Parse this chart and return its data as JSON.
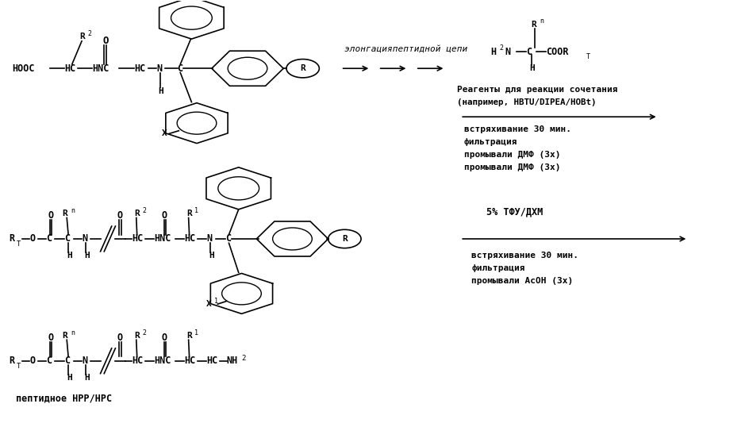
{
  "bg_color": "#ffffff",
  "text_color": "#000000",
  "fig_width": 9.44,
  "fig_height": 5.33,
  "dpi": 100,
  "arrow1_label": "элонгацияпептидной цепи",
  "reagents_text1": "Реагенты для реакции сочетания",
  "reagents_text2": "(например, HBTU/DIPEA/HOBt)",
  "step1_text1": "встряхивание 30 мин.",
  "step1_text2": "фильтрация",
  "step1_text3": "промывали ДМФ (3x)",
  "step1_text4": "промывали ДМФ (3x)",
  "step2_label": "5% ТФУ/ДХМ",
  "step2_text1": "встряхивание 30 мин.",
  "step2_text2": "фильтрация",
  "step2_text3": "промывали AcOH (3x)",
  "bot_caption": "пептидное HPP/HPC"
}
